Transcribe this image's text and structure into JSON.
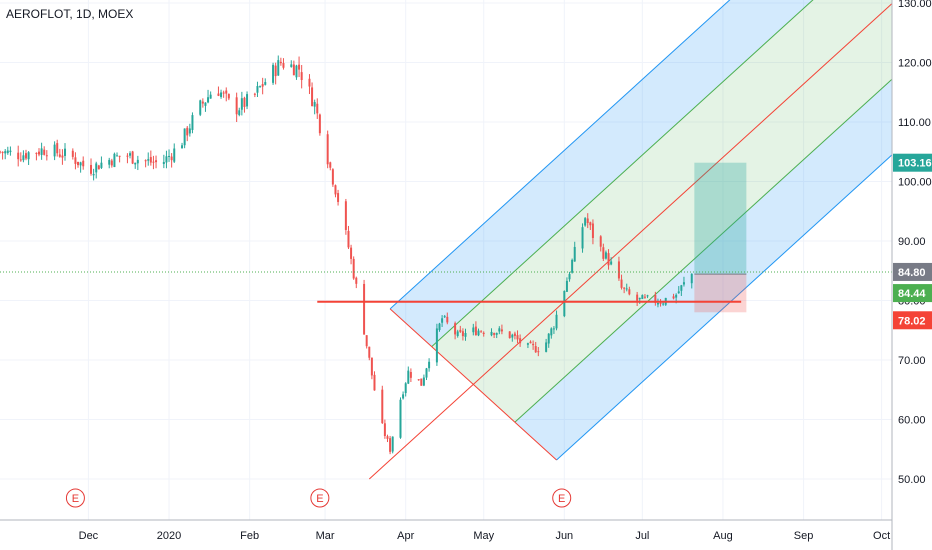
{
  "title": "AEROFLOT, 1D, MOEX",
  "colors": {
    "up": "#26a69a",
    "down": "#ef5350",
    "support_line": "#f44336",
    "pitchfork_outer": "#2196f3",
    "pitchfork_inner": "#4caf50",
    "median": "#f44336",
    "target_zone": "#26a69a",
    "stop_zone": "#ef5350",
    "current_price_line": "#4caf50"
  },
  "price_badges": [
    {
      "label": "103.16",
      "value": 103.16,
      "color": "#26a69a"
    },
    {
      "label": "84.80",
      "value": 84.8,
      "color": "#787b86"
    },
    {
      "label": "84.44",
      "value": 84.44,
      "color": "#4caf50"
    },
    {
      "label": "78.02",
      "value": 78.02,
      "color": "#f44336"
    }
  ],
  "earnings_markers": [
    {
      "label": "E",
      "date": "2019-11-26"
    },
    {
      "label": "E",
      "date": "2020-02-28"
    },
    {
      "label": "E",
      "date": "2020-05-31"
    }
  ],
  "chart_data": {
    "type": "candlestick",
    "ylim": [
      45,
      130
    ],
    "xlim": [
      "2019-10-28",
      "2020-10-05"
    ],
    "y_ticks": [
      {
        "value": 50,
        "label": "50.00"
      },
      {
        "value": 60,
        "label": "60.00"
      },
      {
        "value": 70,
        "label": "70.00"
      },
      {
        "value": 80,
        "label": "80.00"
      },
      {
        "value": 90,
        "label": "90.00"
      },
      {
        "value": 100,
        "label": "100.00"
      },
      {
        "value": 110,
        "label": "110.00"
      },
      {
        "value": 120,
        "label": "120.00"
      },
      {
        "value": 130,
        "label": "130.00"
      }
    ],
    "x_ticks": [
      {
        "date": "2019-12-01",
        "label": "Dec"
      },
      {
        "date": "2020-01-01",
        "label": "2020"
      },
      {
        "date": "2020-02-01",
        "label": "Feb"
      },
      {
        "date": "2020-03-01",
        "label": "Mar"
      },
      {
        "date": "2020-04-01",
        "label": "Apr"
      },
      {
        "date": "2020-05-01",
        "label": "May"
      },
      {
        "date": "2020-06-01",
        "label": "Jun"
      },
      {
        "date": "2020-07-01",
        "label": "Jul"
      },
      {
        "date": "2020-08-01",
        "label": "Aug"
      },
      {
        "date": "2020-09-01",
        "label": "Sep"
      },
      {
        "date": "2020-10-01",
        "label": "Oct"
      }
    ],
    "close_path": [
      [
        "2019-10-28",
        105
      ],
      [
        "2019-11-05",
        104.5
      ],
      [
        "2019-11-15",
        105.5
      ],
      [
        "2019-11-25",
        104
      ],
      [
        "2019-12-01",
        102
      ],
      [
        "2019-12-08",
        103.5
      ],
      [
        "2019-12-15",
        104.5
      ],
      [
        "2019-12-22",
        103.5
      ],
      [
        "2019-12-29",
        103
      ],
      [
        "2020-01-05",
        106
      ],
      [
        "2020-01-12",
        112
      ],
      [
        "2020-01-19",
        116
      ],
      [
        "2020-01-26",
        112
      ],
      [
        "2020-02-02",
        114
      ],
      [
        "2020-02-09",
        118
      ],
      [
        "2020-02-13",
        120
      ],
      [
        "2020-02-20",
        119
      ],
      [
        "2020-02-26",
        113
      ],
      [
        "2020-03-02",
        104
      ],
      [
        "2020-03-06",
        97
      ],
      [
        "2020-03-10",
        89
      ],
      [
        "2020-03-14",
        80
      ],
      [
        "2020-03-18",
        70
      ],
      [
        "2020-03-22",
        60
      ],
      [
        "2020-03-26",
        55
      ],
      [
        "2020-03-29",
        62
      ],
      [
        "2020-04-02",
        68
      ],
      [
        "2020-04-07",
        66
      ],
      [
        "2020-04-11",
        72
      ],
      [
        "2020-04-15",
        77
      ],
      [
        "2020-04-21",
        74
      ],
      [
        "2020-04-28",
        75
      ],
      [
        "2020-05-05",
        75
      ],
      [
        "2020-05-12",
        74
      ],
      [
        "2020-05-18",
        72
      ],
      [
        "2020-05-24",
        72
      ],
      [
        "2020-05-28",
        76
      ],
      [
        "2020-06-01",
        82
      ],
      [
        "2020-06-05",
        88
      ],
      [
        "2020-06-09",
        94
      ],
      [
        "2020-06-13",
        90
      ],
      [
        "2020-06-19",
        86
      ],
      [
        "2020-06-23",
        82
      ],
      [
        "2020-06-28",
        80
      ],
      [
        "2020-07-03",
        80
      ],
      [
        "2020-07-09",
        80
      ],
      [
        "2020-07-14",
        81
      ],
      [
        "2020-07-20",
        84.44
      ]
    ],
    "support_line": {
      "price": 79.8,
      "from": "2020-02-27",
      "to": "2020-08-08"
    },
    "current_price_line": 84.8,
    "pitchfork": {
      "p0": [
        "2020-03-18",
        50
      ],
      "p1": [
        "2020-03-26",
        78.6
      ],
      "p2": [
        "2020-05-29",
        53.2
      ],
      "extend_to": "2020-10-05"
    },
    "position": {
      "from": "2020-07-21",
      "to": "2020-08-10",
      "entry": 84.44,
      "target": 103.16,
      "stop": 78.02
    }
  }
}
